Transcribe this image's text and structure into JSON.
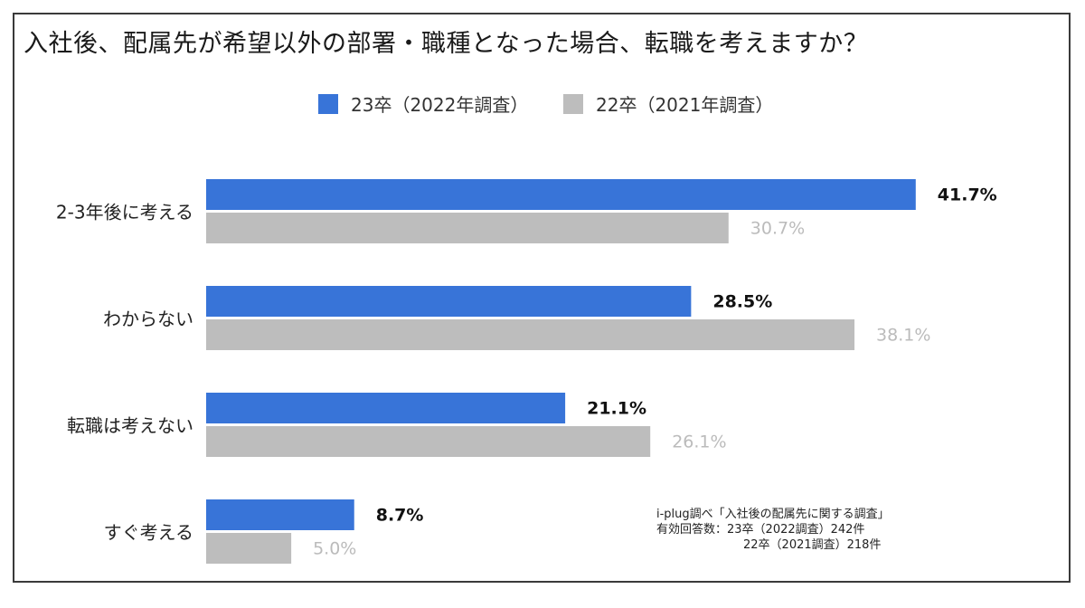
{
  "chart_data": {
    "type": "bar",
    "orientation": "horizontal",
    "title": "入社後、配属先が希望以外の部署・職種となった場合、転職を考えますか？",
    "categories": [
      "2-3年後に考える",
      "わからない",
      "転職は考えない",
      "すぐ考える"
    ],
    "series": [
      {
        "name": "23卒（2022年調査）",
        "color": "#3874d8",
        "values": [
          41.7,
          28.5,
          21.1,
          8.7
        ],
        "labels": [
          "41.7%",
          "28.5%",
          "21.1%",
          "8.7%"
        ]
      },
      {
        "name": "22卒（2021年調査）",
        "color": "#bdbdbd",
        "values": [
          30.7,
          38.1,
          26.1,
          5.0
        ],
        "labels": [
          "30.7%",
          "38.1%",
          "26.1%",
          "5.0%"
        ]
      }
    ],
    "xlim": [
      0,
      50
    ],
    "grid": false,
    "legend_position": "top-center"
  },
  "source_note": {
    "line1": "i-plug調べ「入社後の配属先に関する調査」",
    "line2": "有効回答数：23卒（2022調査）242件",
    "line3": "22卒（2021調査）218件"
  }
}
